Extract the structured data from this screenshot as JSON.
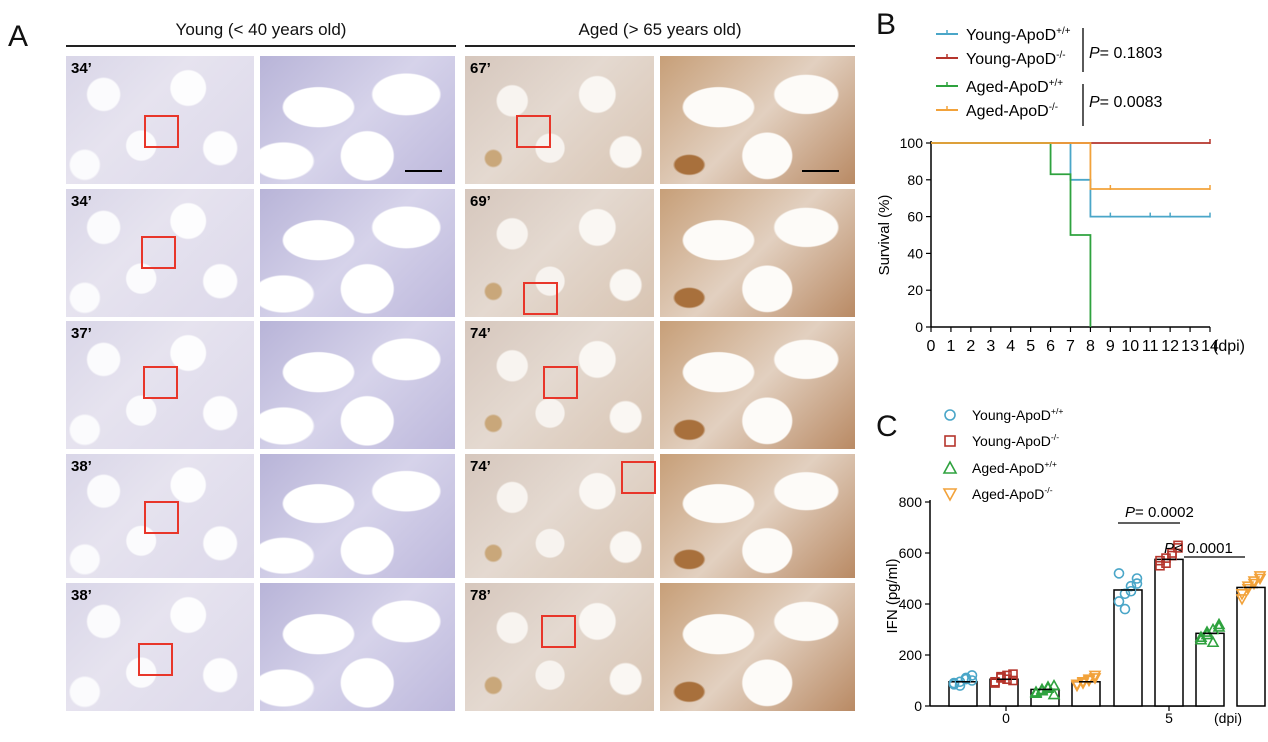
{
  "panel_a": {
    "letter": "A",
    "young_title": "Young (< 40 years old)",
    "aged_title": "Aged (> 65 years old)",
    "young_ages": [
      "34’",
      "34’",
      "37’",
      "38’",
      "38’"
    ],
    "aged_ages": [
      "67’",
      "69’",
      "74’",
      "74’",
      "78’"
    ]
  },
  "panel_b": {
    "letter": "B",
    "legend": [
      {
        "base": "Young-ApoD",
        "sup": "+/+",
        "color": "#4aa6c8"
      },
      {
        "base": "Young-ApoD",
        "sup": "-/-",
        "color": "#b5352c"
      },
      {
        "base": "Aged-ApoD",
        "sup": "+/+",
        "color": "#2ea23e"
      },
      {
        "base": "Aged-ApoD",
        "sup": "-/-",
        "color": "#f2a23a"
      }
    ],
    "p_young_prefix": "P",
    "p_young_value": "= 0.1803",
    "p_aged_prefix": "P",
    "p_aged_value": "= 0.0083"
  },
  "panel_c": {
    "letter": "C",
    "legend": [
      {
        "base": "Young-ApoD",
        "sup": "+/+",
        "color": "#4aa6c8"
      },
      {
        "base": "Young-ApoD",
        "sup": "-/-",
        "color": "#b5352c"
      },
      {
        "base": "Aged-ApoD",
        "sup": "+/+",
        "color": "#2ea23e"
      },
      {
        "base": "Aged-ApoD",
        "sup": "-/-",
        "color": "#f2a23a"
      }
    ],
    "p1_prefix": "P",
    "p1_value": "= 0.0002",
    "p2_prefix": "P",
    "p2_value": "< 0.0001"
  },
  "chart_data": [
    {
      "type": "line",
      "subtype": "survival-step",
      "ylabel": "Survival (%)",
      "xlabel": "(dpi)",
      "xlim": [
        0,
        14
      ],
      "ylim": [
        0,
        100
      ],
      "xticks": [
        0,
        1,
        2,
        3,
        4,
        5,
        6,
        7,
        8,
        9,
        10,
        11,
        12,
        13,
        14
      ],
      "yticks": [
        0,
        20,
        40,
        60,
        80,
        100
      ],
      "series": [
        {
          "name": "Young-ApoD+/+",
          "color": "#4aa6c8",
          "steps": [
            [
              0,
              100
            ],
            [
              7,
              100
            ],
            [
              7,
              80
            ],
            [
              8,
              80
            ],
            [
              8,
              60
            ],
            [
              14,
              60
            ]
          ],
          "censor": [
            [
              9,
              60
            ],
            [
              11,
              60
            ],
            [
              12,
              60
            ],
            [
              14,
              60
            ]
          ]
        },
        {
          "name": "Young-ApoD-/-",
          "color": "#b5352c",
          "steps": [
            [
              0,
              100
            ],
            [
              14,
              100
            ]
          ],
          "censor": [
            [
              14,
              100
            ]
          ]
        },
        {
          "name": "Aged-ApoD+/+",
          "color": "#2ea23e",
          "steps": [
            [
              0,
              100
            ],
            [
              6,
              100
            ],
            [
              6,
              83
            ],
            [
              7,
              83
            ],
            [
              7,
              50
            ],
            [
              8,
              50
            ],
            [
              8,
              0
            ]
          ],
          "censor": []
        },
        {
          "name": "Aged-ApoD-/-",
          "color": "#f2a23a",
          "steps": [
            [
              0,
              100
            ],
            [
              8,
              100
            ],
            [
              8,
              75
            ],
            [
              14,
              75
            ]
          ],
          "censor": [
            [
              9,
              75
            ],
            [
              14,
              75
            ]
          ]
        }
      ]
    },
    {
      "type": "bar",
      "subtype": "bar-with-points",
      "ylabel": "IFN (pg/ml)",
      "xlabel": "(dpi)",
      "categories": [
        "0",
        "5"
      ],
      "ylim": [
        0,
        800
      ],
      "yticks": [
        0,
        200,
        400,
        600,
        800
      ],
      "series": [
        {
          "name": "Young-ApoD+/+",
          "color": "#4aa6c8",
          "marker": "circle",
          "values": [
            95,
            455
          ],
          "points": [
            [
              85,
              95,
              110,
              100,
              90,
              80,
              105,
              120
            ],
            [
              410,
              440,
              470,
              500,
              520,
              380,
              450,
              480
            ]
          ]
        },
        {
          "name": "Young-ApoD-/-",
          "color": "#b5352c",
          "marker": "square",
          "values": [
            105,
            575
          ],
          "points": [
            [
              90,
              110,
              120,
              100,
              95,
              115,
              105,
              125
            ],
            [
              550,
              580,
              600,
              620,
              570,
              560,
              590,
              630
            ]
          ]
        },
        {
          "name": "Aged-ApoD+/+",
          "color": "#2ea23e",
          "marker": "triangle-up",
          "values": [
            65,
            285
          ],
          "points": [
            [
              50,
              60,
              70,
              80,
              55,
              65,
              75,
              45
            ],
            [
              260,
              280,
              300,
              310,
              270,
              290,
              250,
              320
            ]
          ]
        },
        {
          "name": "Aged-ApoD-/-",
          "color": "#f2a23a",
          "marker": "triangle-down",
          "values": [
            95,
            465
          ],
          "points": [
            [
              80,
              90,
              100,
              110,
              85,
              95,
              105,
              120
            ],
            [
              440,
              460,
              480,
              500,
              420,
              470,
              490,
              510
            ]
          ]
        }
      ]
    }
  ]
}
